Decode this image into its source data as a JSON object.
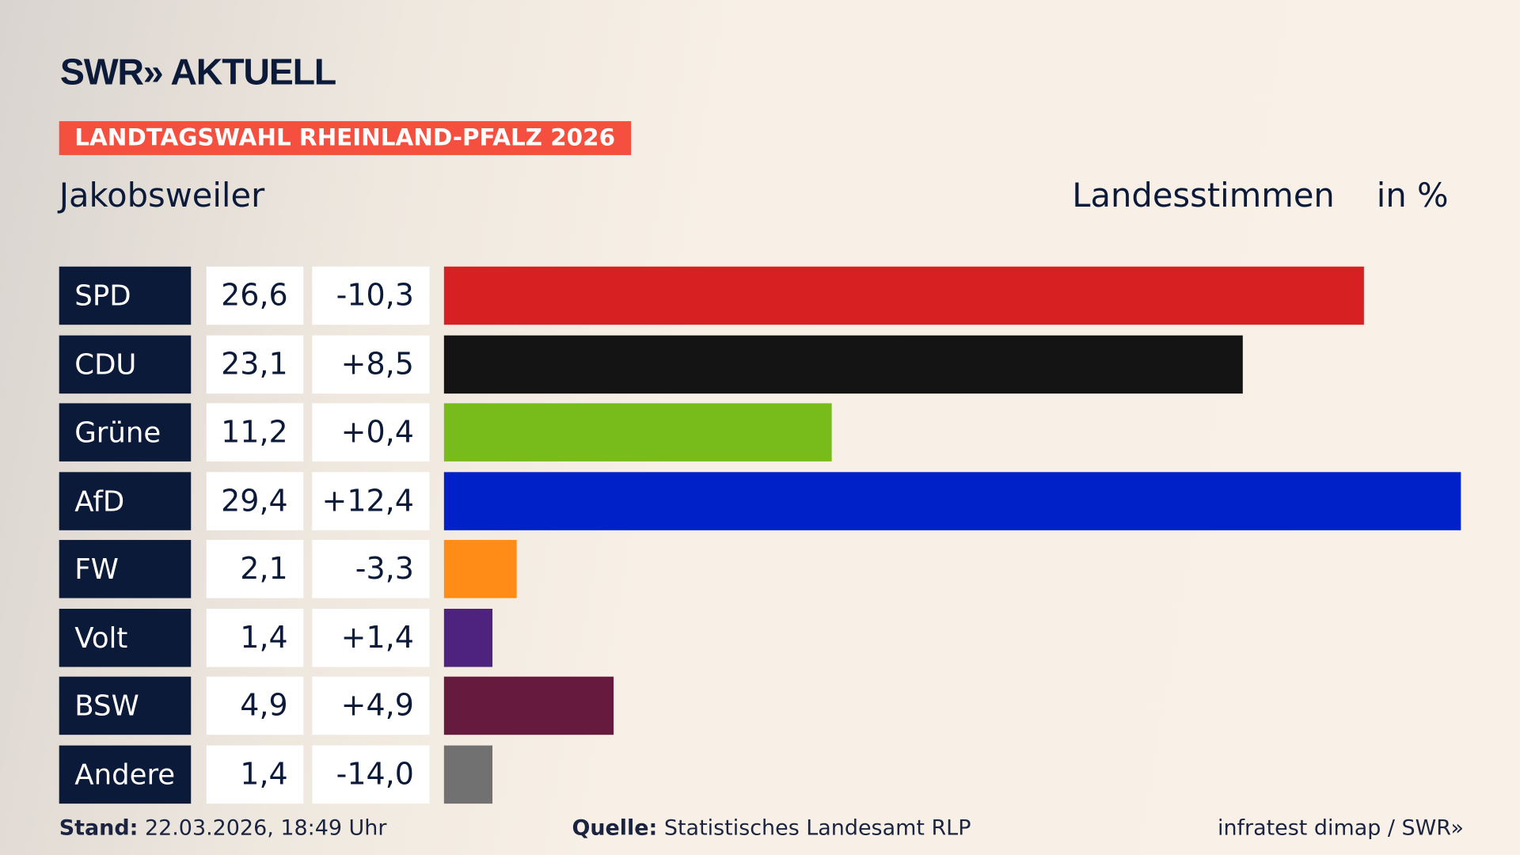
{
  "header": {
    "logo": "SWR» AKTUELL",
    "banner": "LANDTAGSWAHL RHEINLAND-PFALZ 2026",
    "region": "Jakobsweiler",
    "vote_type": "Landesstimmen",
    "unit": "in %"
  },
  "chart_data": {
    "type": "bar",
    "orientation": "horizontal",
    "categories": [
      "SPD",
      "CDU",
      "Grüne",
      "AfD",
      "FW",
      "Volt",
      "BSW",
      "Andere"
    ],
    "values": [
      26.6,
      23.1,
      11.2,
      29.4,
      2.1,
      1.4,
      4.9,
      1.4
    ],
    "value_labels": [
      "26,6",
      "23,1",
      "11,2",
      "29,4",
      "2,1",
      "1,4",
      "4,9",
      "1,4"
    ],
    "diff_labels": [
      "-10,3",
      "+8,5",
      "+0,4",
      "+12,4",
      "-3,3",
      "+1,4",
      "+4,9",
      "-14,0"
    ],
    "colors": [
      "#d72021",
      "#141414",
      "#78bc1b",
      "#0021c8",
      "#ff8c16",
      "#4e2380",
      "#661a3e",
      "#717171"
    ]
  },
  "footer": {
    "stand_label": "Stand:",
    "stand_value": "22.03.2026, 18:49 Uhr",
    "source_label": "Quelle:",
    "source_value": "Statistisches Landesamt RLP",
    "credit": "infratest dimap / SWR»"
  }
}
